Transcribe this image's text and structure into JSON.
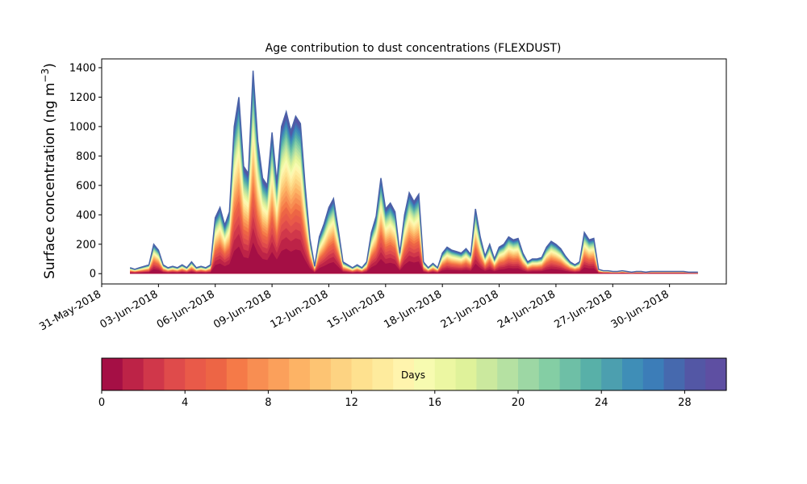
{
  "chart_data": {
    "type": "area",
    "title": "Age contribution to dust concentrations (FLEXDUST)",
    "ylabel": "Surface concentration (ng m",
    "ylabel_sup": "−3",
    "ylabel_close": ")",
    "xlabel": "",
    "ylim": [
      -70,
      1460
    ],
    "xlim": [
      "2018-05-31",
      "2018-07-03"
    ],
    "yticks": [
      0,
      200,
      400,
      600,
      800,
      1000,
      1200,
      1400
    ],
    "xtick_labels": [
      "31-May-2018",
      "03-Jun-2018",
      "06-Jun-2018",
      "09-Jun-2018",
      "12-Jun-2018",
      "15-Jun-2018",
      "18-Jun-2018",
      "21-Jun-2018",
      "24-Jun-2018",
      "27-Jun-2018",
      "30-Jun-2018"
    ],
    "xtick_dates": [
      "2018-05-31",
      "2018-06-03",
      "2018-06-06",
      "2018-06-09",
      "2018-06-12",
      "2018-06-15",
      "2018-06-18",
      "2018-06-21",
      "2018-06-24",
      "2018-06-27",
      "2018-06-30"
    ],
    "grid": false,
    "stack_description": "stacked contributions by age in days (0-30), youngest at bottom",
    "total": {
      "dates": [
        "2018-06-01T12:00",
        "2018-06-01T18:00",
        "2018-06-02T00:00",
        "2018-06-02T06:00",
        "2018-06-02T12:00",
        "2018-06-02T18:00",
        "2018-06-03T00:00",
        "2018-06-03T06:00",
        "2018-06-03T12:00",
        "2018-06-03T18:00",
        "2018-06-04T00:00",
        "2018-06-04T06:00",
        "2018-06-04T12:00",
        "2018-06-04T18:00",
        "2018-06-05T00:00",
        "2018-06-05T06:00",
        "2018-06-05T12:00",
        "2018-06-05T18:00",
        "2018-06-06T00:00",
        "2018-06-06T06:00",
        "2018-06-06T12:00",
        "2018-06-06T18:00",
        "2018-06-07T00:00",
        "2018-06-07T06:00",
        "2018-06-07T12:00",
        "2018-06-07T18:00",
        "2018-06-08T00:00",
        "2018-06-08T06:00",
        "2018-06-08T12:00",
        "2018-06-08T18:00",
        "2018-06-09T00:00",
        "2018-06-09T06:00",
        "2018-06-09T12:00",
        "2018-06-09T18:00",
        "2018-06-10T00:00",
        "2018-06-10T06:00",
        "2018-06-10T12:00",
        "2018-06-10T18:00",
        "2018-06-11T00:00",
        "2018-06-11T06:00",
        "2018-06-11T12:00",
        "2018-06-11T18:00",
        "2018-06-12T00:00",
        "2018-06-12T06:00",
        "2018-06-12T12:00",
        "2018-06-12T18:00",
        "2018-06-13T00:00",
        "2018-06-13T06:00",
        "2018-06-13T12:00",
        "2018-06-13T18:00",
        "2018-06-14T00:00",
        "2018-06-14T06:00",
        "2018-06-14T12:00",
        "2018-06-14T18:00",
        "2018-06-15T00:00",
        "2018-06-15T06:00",
        "2018-06-15T12:00",
        "2018-06-15T18:00",
        "2018-06-16T00:00",
        "2018-06-16T06:00",
        "2018-06-16T12:00",
        "2018-06-16T18:00",
        "2018-06-17T00:00",
        "2018-06-17T06:00",
        "2018-06-17T12:00",
        "2018-06-17T18:00",
        "2018-06-18T00:00",
        "2018-06-18T06:00",
        "2018-06-18T12:00",
        "2018-06-18T18:00",
        "2018-06-19T00:00",
        "2018-06-19T06:00",
        "2018-06-19T12:00",
        "2018-06-19T18:00",
        "2018-06-20T00:00",
        "2018-06-20T06:00",
        "2018-06-20T12:00",
        "2018-06-20T18:00",
        "2018-06-21T00:00",
        "2018-06-21T06:00",
        "2018-06-21T12:00",
        "2018-06-21T18:00",
        "2018-06-22T00:00",
        "2018-06-22T06:00",
        "2018-06-22T12:00",
        "2018-06-22T18:00",
        "2018-06-23T00:00",
        "2018-06-23T06:00",
        "2018-06-23T12:00",
        "2018-06-23T18:00",
        "2018-06-24T00:00",
        "2018-06-24T06:00",
        "2018-06-24T12:00",
        "2018-06-24T18:00",
        "2018-06-25T00:00",
        "2018-06-25T06:00",
        "2018-06-25T12:00",
        "2018-06-25T18:00",
        "2018-06-26T00:00",
        "2018-06-26T06:00",
        "2018-06-26T12:00",
        "2018-06-26T18:00",
        "2018-06-27T00:00",
        "2018-06-27T06:00",
        "2018-06-27T12:00",
        "2018-06-27T18:00",
        "2018-06-28T00:00",
        "2018-06-28T06:00",
        "2018-06-28T12:00",
        "2018-06-28T18:00",
        "2018-06-29T00:00",
        "2018-06-29T06:00",
        "2018-06-29T12:00",
        "2018-06-29T18:00",
        "2018-06-30T00:00",
        "2018-06-30T06:00",
        "2018-06-30T12:00",
        "2018-06-30T18:00",
        "2018-07-01T00:00",
        "2018-07-01T06:00",
        "2018-07-01T12:00"
      ],
      "values": [
        40,
        30,
        40,
        50,
        60,
        200,
        160,
        60,
        40,
        50,
        40,
        60,
        40,
        80,
        40,
        50,
        40,
        60,
        380,
        450,
        330,
        420,
        1000,
        1200,
        730,
        680,
        1380,
        900,
        650,
        600,
        960,
        620,
        1000,
        1100,
        970,
        1070,
        1020,
        600,
        240,
        50,
        250,
        340,
        450,
        510,
        300,
        80,
        60,
        40,
        60,
        40,
        80,
        280,
        390,
        650,
        440,
        480,
        420,
        140,
        400,
        550,
        490,
        540,
        80,
        40,
        70,
        40,
        140,
        180,
        160,
        150,
        140,
        170,
        130,
        440,
        250,
        120,
        200,
        100,
        180,
        200,
        250,
        230,
        240,
        140,
        80,
        100,
        100,
        110,
        180,
        220,
        200,
        170,
        120,
        80,
        60,
        80,
        280,
        230,
        240,
        30,
        20,
        20,
        15,
        15,
        20,
        15,
        10,
        15,
        15,
        10,
        15,
        15,
        15,
        15,
        15,
        15,
        15,
        15,
        10,
        10,
        10
      ],
      "_note_placeholder": ""
    },
    "colorbar": {
      "label": "Days",
      "range": [
        0,
        30
      ],
      "ticks": [
        0,
        4,
        8,
        12,
        16,
        20,
        24,
        28
      ],
      "colors": [
        "#a50f45",
        "#bd2347",
        "#d0374a",
        "#df4b4b",
        "#e95a49",
        "#ed6545",
        "#f57a48",
        "#f88e52",
        "#fba05b",
        "#fdb365",
        "#fdc473",
        "#fdd382",
        "#fee18f",
        "#feeb9d",
        "#fff4ad",
        "#f7fbb0",
        "#ecf7a2",
        "#dff29a",
        "#cbe99e",
        "#b5e1a2",
        "#9dd7a4",
        "#84cea4",
        "#6ebfa6",
        "#58b0a8",
        "#4c9faf",
        "#3f8eb7",
        "#3c7db8",
        "#4669ae",
        "#5357a5",
        "#5e4fa2"
      ]
    }
  }
}
